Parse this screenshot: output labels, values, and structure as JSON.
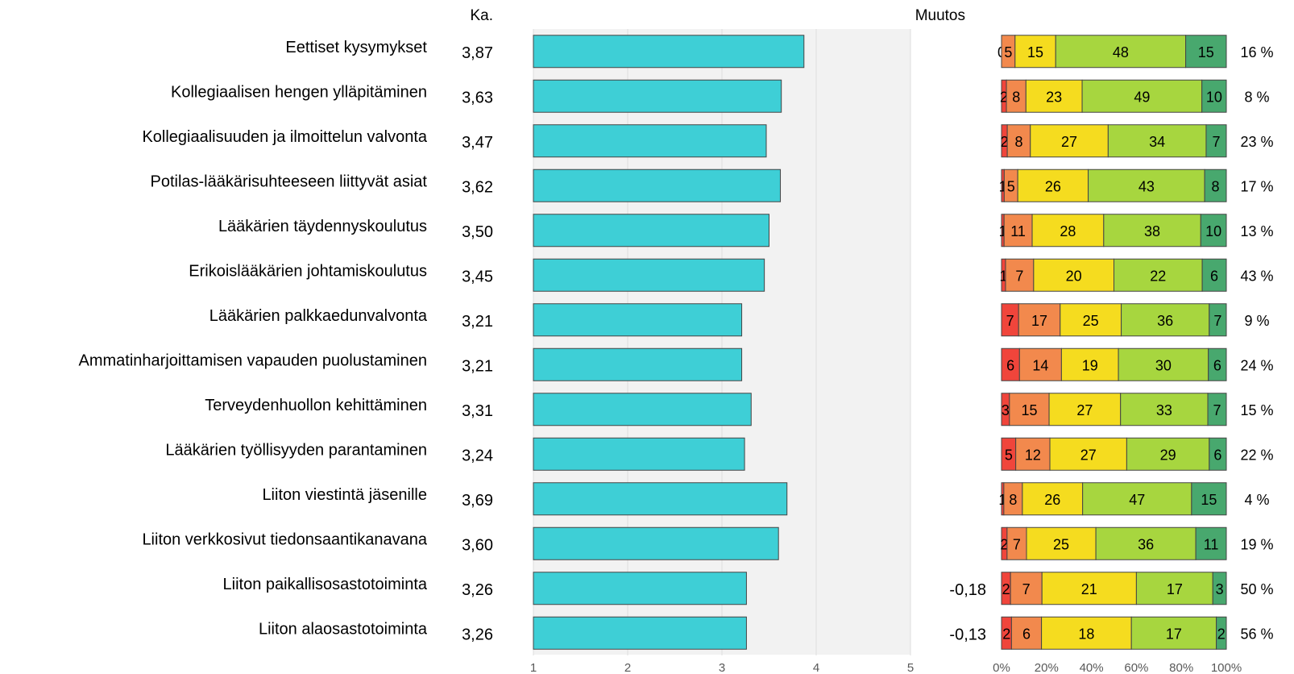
{
  "chart_data": [
    {
      "type": "bar",
      "orientation": "horizontal",
      "header": "Ka.",
      "categories": [
        "Eettiset kysymykset",
        "Kollegiaalisen hengen ylläpitäminen",
        "Kollegiaalisuuden ja ilmoittelun valvonta",
        "Potilas-lääkärisuhteeseen liittyvät asiat",
        "Lääkärien täydennyskoulutus",
        "Erikoislääkärien johtamiskoulutus",
        "Lääkärien palkkaedunvalvonta",
        "Ammatinharjoittamisen vapauden puolustaminen",
        "Terveydenhuollon kehittäminen",
        "Lääkärien työllisyyden parantaminen",
        "Liiton viestintä jäsenille",
        "Liiton verkkosivut tiedonsaantikanavana",
        "Liiton paikallisosastotoiminta",
        "Liiton alaosastotoiminta"
      ],
      "values": [
        3.87,
        3.63,
        3.47,
        3.62,
        3.5,
        3.45,
        3.21,
        3.21,
        3.31,
        3.24,
        3.69,
        3.6,
        3.26,
        3.26
      ],
      "value_labels": [
        "3,87",
        "3,63",
        "3,47",
        "3,62",
        "3,50",
        "3,45",
        "3,21",
        "3,21",
        "3,31",
        "3,24",
        "3,69",
        "3,60",
        "3,26",
        "3,26"
      ],
      "xlim": [
        1,
        5
      ],
      "xticks": [
        "1",
        "2",
        "3",
        "4",
        "5"
      ],
      "bar_color": "#3ecfd6",
      "grid": true
    },
    {
      "type": "table",
      "header": "Muutos",
      "values": [
        "",
        "",
        "",
        "",
        "",
        "",
        "",
        "",
        "",
        "",
        "",
        "",
        "-0,18",
        "-0,13"
      ]
    },
    {
      "type": "bar",
      "orientation": "horizontal",
      "stacked": "percent",
      "series": [
        {
          "color": "#f0453b",
          "values": [
            0,
            2,
            2,
            1,
            1,
            1,
            7,
            6,
            3,
            5,
            1,
            2,
            2,
            2
          ]
        },
        {
          "color": "#f2894d",
          "values": [
            5,
            8,
            8,
            5,
            11,
            7,
            17,
            14,
            15,
            12,
            8,
            7,
            7,
            6
          ]
        },
        {
          "color": "#f5dc1f",
          "values": [
            15,
            23,
            27,
            26,
            28,
            20,
            25,
            19,
            27,
            27,
            26,
            25,
            21,
            18
          ]
        },
        {
          "color": "#a7d63f",
          "values": [
            48,
            49,
            34,
            43,
            38,
            22,
            36,
            30,
            33,
            29,
            47,
            36,
            17,
            17
          ]
        },
        {
          "color": "#48a86e",
          "values": [
            15,
            10,
            7,
            8,
            10,
            6,
            7,
            6,
            7,
            6,
            15,
            11,
            3,
            2
          ]
        }
      ],
      "segment_labels": [
        [
          "0",
          "5",
          "15",
          "48",
          "15"
        ],
        [
          "2",
          "8",
          "23",
          "49",
          "10"
        ],
        [
          "2",
          "8",
          "27",
          "34",
          "7"
        ],
        [
          "1",
          "5",
          "26",
          "43",
          "8"
        ],
        [
          "1",
          "11",
          "28",
          "38",
          "10"
        ],
        [
          "1",
          "7",
          "20",
          "22",
          "6"
        ],
        [
          "7",
          "17",
          "25",
          "36",
          "7"
        ],
        [
          "6",
          "14",
          "19",
          "30",
          "6"
        ],
        [
          "3",
          "15",
          "27",
          "33",
          "7"
        ],
        [
          "5",
          "12",
          "27",
          "29",
          "6"
        ],
        [
          "1",
          "8",
          "26",
          "47",
          "15"
        ],
        [
          "2",
          "7",
          "25",
          "36",
          "11"
        ],
        [
          "2",
          "7",
          "21",
          "17",
          "3"
        ],
        [
          "2",
          "6",
          "18",
          "17",
          "2"
        ]
      ],
      "xticks": [
        "0%",
        "20%",
        "40%",
        "60%",
        "80%",
        "100%"
      ],
      "right_labels": [
        "16 %",
        "8 %",
        "23 %",
        "17 %",
        "13 %",
        "43 %",
        "9 %",
        "24 %",
        "15 %",
        "22 %",
        "4 %",
        "19 %",
        "50 %",
        "56 %"
      ]
    }
  ]
}
